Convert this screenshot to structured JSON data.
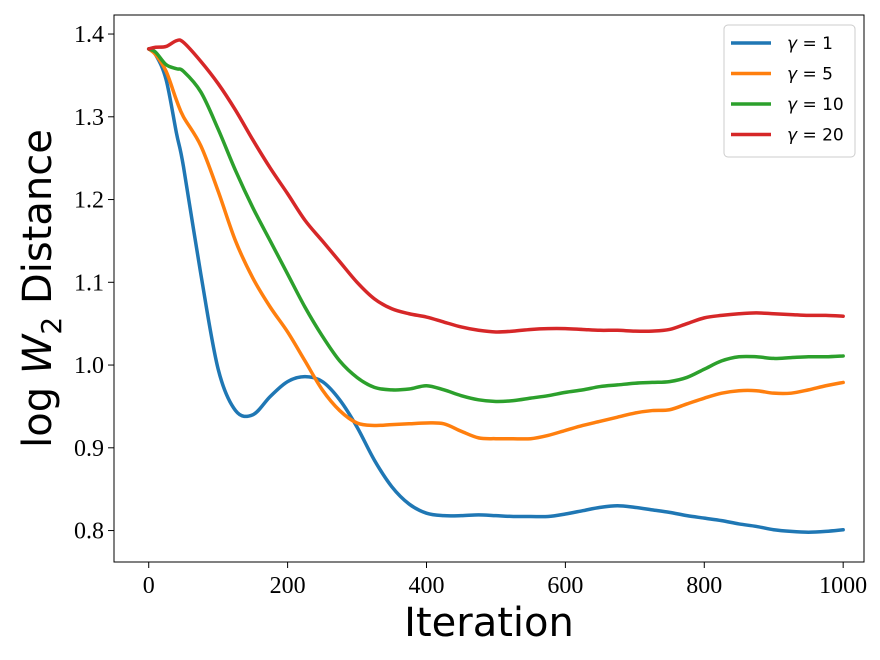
{
  "chart_data": {
    "type": "line",
    "title": "",
    "xlabel": "Iteration",
    "ylabel_prefix": "log ",
    "ylabel_symbol": "W",
    "ylabel_subscript": "2",
    "ylabel_suffix": " Distance",
    "xlim": [
      -50,
      1030
    ],
    "ylim": [
      0.762,
      1.423
    ],
    "xticks": [
      0,
      200,
      400,
      600,
      800,
      1000
    ],
    "xtick_labels": [
      "0",
      "200",
      "400",
      "600",
      "800",
      "1000"
    ],
    "yticks": [
      0.8,
      0.9,
      1.0,
      1.1,
      1.2,
      1.3,
      1.4
    ],
    "ytick_labels": [
      "0.8",
      "0.9",
      "1.0",
      "1.1",
      "1.2",
      "1.3",
      "1.4"
    ],
    "grid": false,
    "legend_position": "top-right",
    "x": [
      0,
      10,
      25,
      40,
      50,
      75,
      100,
      125,
      150,
      175,
      200,
      225,
      250,
      275,
      300,
      325,
      350,
      375,
      400,
      425,
      450,
      475,
      500,
      525,
      550,
      575,
      600,
      625,
      650,
      675,
      700,
      725,
      750,
      775,
      800,
      825,
      850,
      875,
      900,
      925,
      950,
      975,
      1000
    ],
    "series": [
      {
        "name": "γ = 1",
        "greek": "γ",
        "value_label": "1",
        "color": "#1f77b4",
        "values": [
          1.382,
          1.375,
          1.345,
          1.28,
          1.24,
          1.11,
          0.995,
          0.945,
          0.94,
          0.962,
          0.98,
          0.986,
          0.98,
          0.958,
          0.925,
          0.885,
          0.853,
          0.832,
          0.821,
          0.818,
          0.818,
          0.819,
          0.818,
          0.817,
          0.817,
          0.817,
          0.82,
          0.824,
          0.828,
          0.83,
          0.828,
          0.825,
          0.822,
          0.818,
          0.815,
          0.812,
          0.808,
          0.805,
          0.801,
          0.799,
          0.798,
          0.799,
          0.801
        ]
      },
      {
        "name": "γ = 5",
        "greek": "γ",
        "value_label": "5",
        "color": "#ff7f0e",
        "values": [
          1.382,
          1.375,
          1.355,
          1.32,
          1.3,
          1.265,
          1.21,
          1.15,
          1.105,
          1.07,
          1.04,
          1.005,
          0.97,
          0.945,
          0.93,
          0.927,
          0.928,
          0.929,
          0.93,
          0.929,
          0.92,
          0.912,
          0.911,
          0.911,
          0.911,
          0.915,
          0.921,
          0.927,
          0.932,
          0.937,
          0.942,
          0.945,
          0.946,
          0.953,
          0.96,
          0.966,
          0.969,
          0.969,
          0.966,
          0.966,
          0.97,
          0.975,
          0.979
        ]
      },
      {
        "name": "γ = 10",
        "greek": "γ",
        "value_label": "10",
        "color": "#2ca02c",
        "values": [
          1.382,
          1.378,
          1.363,
          1.358,
          1.355,
          1.33,
          1.285,
          1.235,
          1.19,
          1.15,
          1.11,
          1.07,
          1.035,
          1.005,
          0.985,
          0.973,
          0.97,
          0.971,
          0.975,
          0.97,
          0.963,
          0.958,
          0.956,
          0.957,
          0.96,
          0.963,
          0.967,
          0.97,
          0.974,
          0.976,
          0.978,
          0.979,
          0.98,
          0.985,
          0.995,
          1.005,
          1.01,
          1.01,
          1.008,
          1.009,
          1.01,
          1.01,
          1.011
        ]
      },
      {
        "name": "γ = 20",
        "greek": "γ",
        "value_label": "20",
        "color": "#d62728",
        "values": [
          1.382,
          1.384,
          1.385,
          1.392,
          1.39,
          1.367,
          1.34,
          1.308,
          1.272,
          1.238,
          1.207,
          1.175,
          1.15,
          1.125,
          1.1,
          1.08,
          1.068,
          1.062,
          1.058,
          1.052,
          1.046,
          1.042,
          1.04,
          1.041,
          1.043,
          1.044,
          1.044,
          1.043,
          1.042,
          1.042,
          1.041,
          1.041,
          1.043,
          1.05,
          1.057,
          1.06,
          1.062,
          1.063,
          1.062,
          1.061,
          1.06,
          1.06,
          1.059
        ]
      }
    ]
  }
}
